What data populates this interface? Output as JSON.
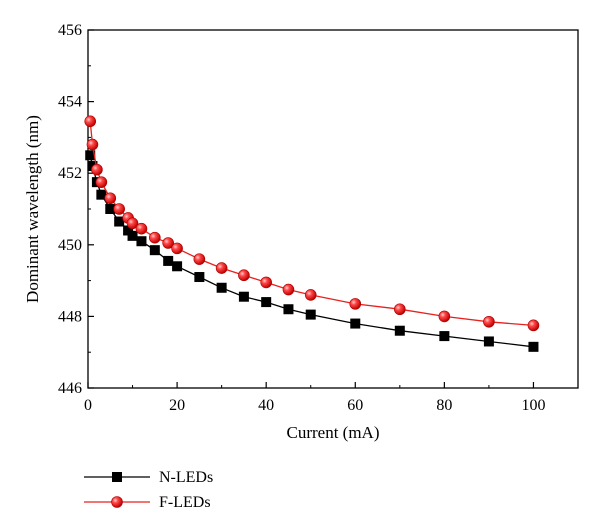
{
  "chart_data": {
    "type": "line",
    "xlabel": "Current (mA)",
    "ylabel": "Dominant wavelength (nm)",
    "xlim": [
      0,
      110
    ],
    "ylim": [
      446,
      456
    ],
    "xticks": [
      0,
      20,
      40,
      60,
      80,
      100
    ],
    "yticks": [
      446,
      448,
      450,
      452,
      454,
      456
    ],
    "grid": false,
    "legend_position": "bottom-left, below plot",
    "series": [
      {
        "name": "N-LEDs",
        "marker": "square",
        "color": "#000000",
        "x": [
          0.5,
          1,
          2,
          3,
          5,
          7,
          9,
          10,
          12,
          15,
          18,
          20,
          25,
          30,
          35,
          40,
          45,
          50,
          60,
          70,
          80,
          90,
          100
        ],
        "y": [
          452.5,
          452.2,
          451.75,
          451.4,
          451.0,
          450.65,
          450.4,
          450.25,
          450.1,
          449.85,
          449.55,
          449.4,
          449.1,
          448.8,
          448.55,
          448.4,
          448.2,
          448.05,
          447.8,
          447.6,
          447.45,
          447.3,
          447.15
        ]
      },
      {
        "name": "F-LEDs",
        "marker": "circle",
        "color": "#e8201e",
        "x": [
          0.5,
          1,
          2,
          3,
          5,
          7,
          9,
          10,
          12,
          15,
          18,
          20,
          25,
          30,
          35,
          40,
          45,
          50,
          60,
          70,
          80,
          90,
          100
        ],
        "y": [
          453.45,
          452.8,
          452.1,
          451.75,
          451.3,
          451.0,
          450.75,
          450.6,
          450.45,
          450.2,
          450.05,
          449.9,
          449.6,
          449.35,
          449.15,
          448.95,
          448.75,
          448.6,
          448.35,
          448.2,
          448.0,
          447.85,
          447.75
        ]
      }
    ]
  }
}
